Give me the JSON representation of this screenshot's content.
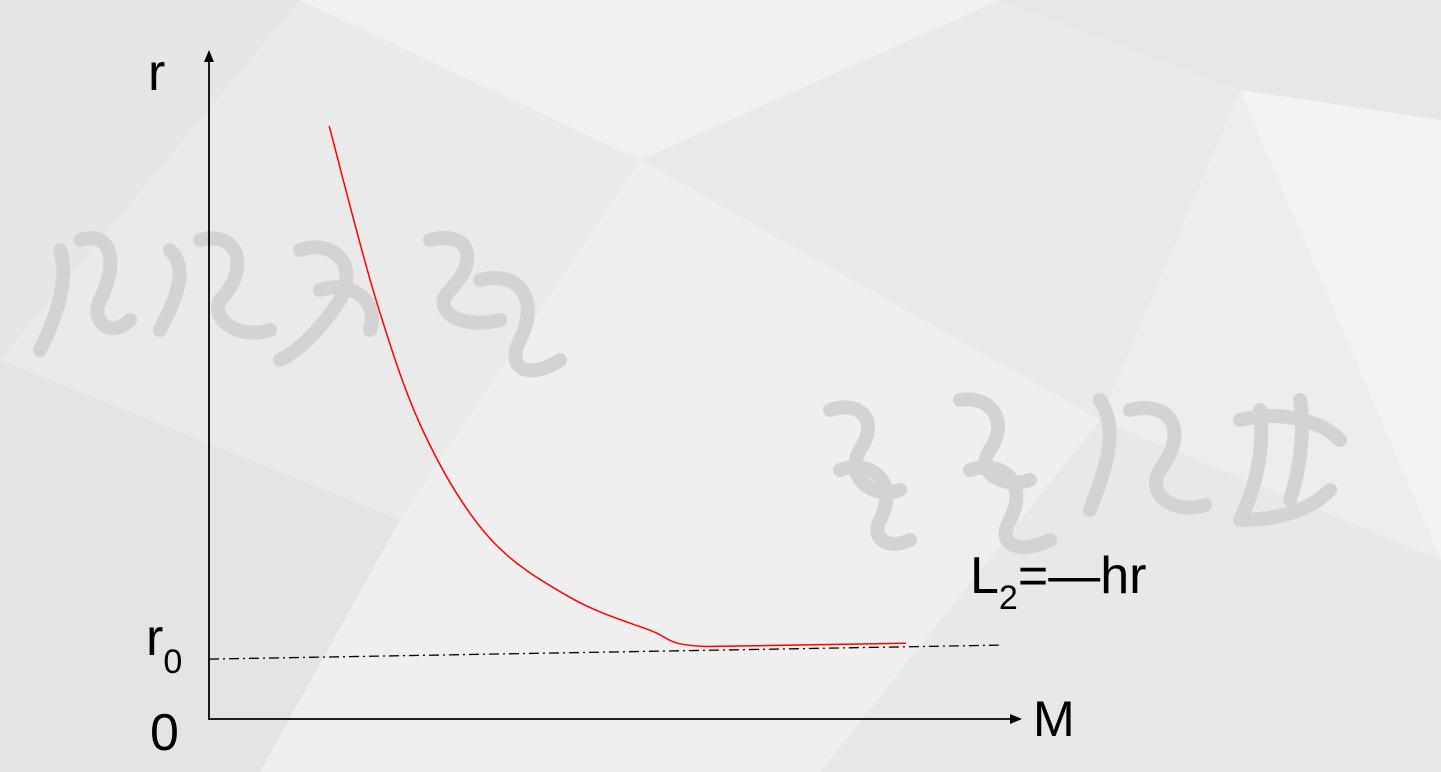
{
  "chart_data": {
    "type": "line",
    "title": "",
    "xlabel": "M",
    "ylabel": "r",
    "origin_label": "0",
    "xlim": [
      0,
      10
    ],
    "ylim": [
      0,
      10
    ],
    "reference_line": {
      "label_main": "r",
      "label_sub": "0",
      "y": 1.0,
      "style": "dash-dot"
    },
    "series": [
      {
        "color": "#ff0000",
        "x": [
          1.5,
          2.1,
          2.7,
          3.5,
          4.5,
          5.5,
          6.2,
          8.7
        ],
        "y": [
          9.0,
          6.3,
          4.3,
          2.75,
          1.85,
          1.35,
          1.1,
          1.15
        ]
      }
    ],
    "annotation": {
      "prefix": "L",
      "sub": "2",
      "eq": "=",
      "dash": "—",
      "suffix": "hr"
    },
    "axis_color": "#000000"
  }
}
